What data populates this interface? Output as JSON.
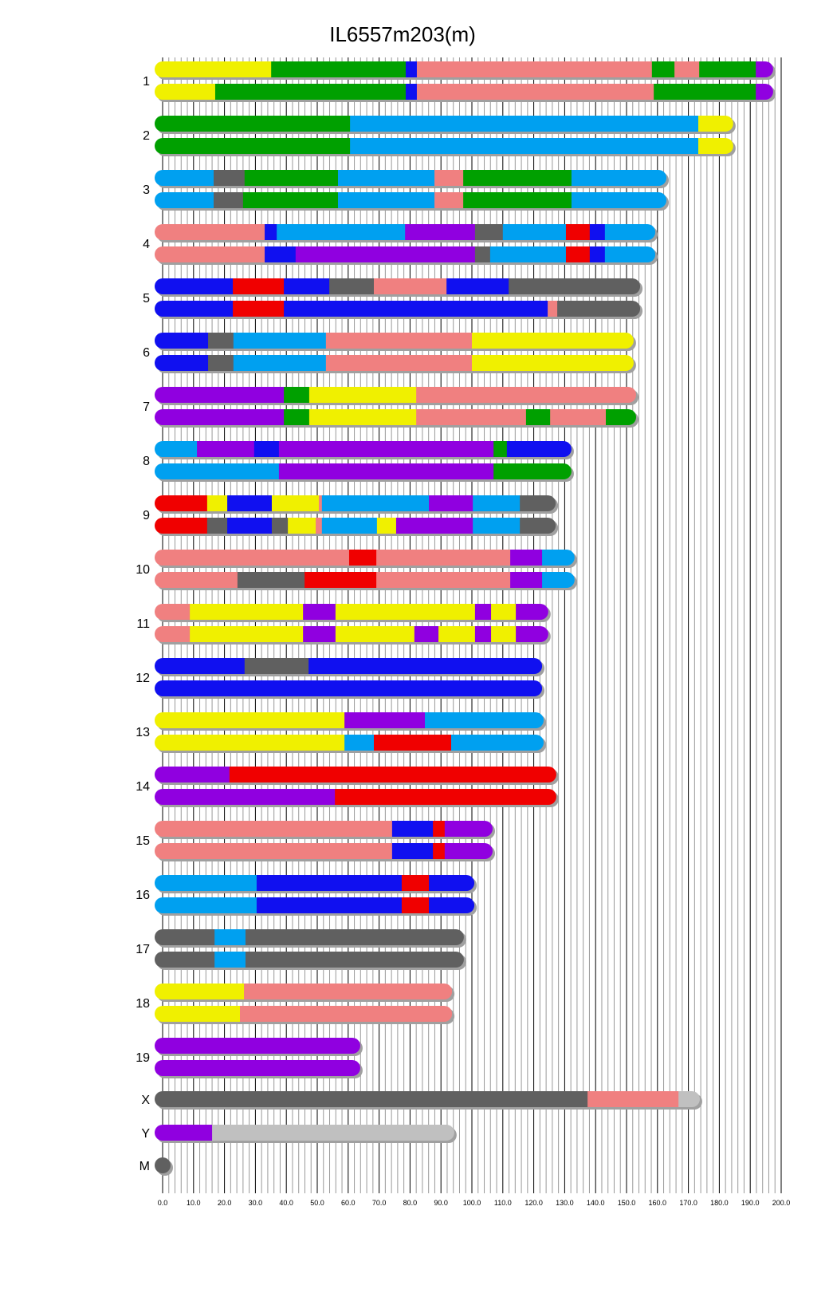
{
  "chart_data": {
    "type": "chromosome-painting",
    "title": "IL6557m203(m)",
    "xlim": [
      0,
      200
    ],
    "x_ticks": [
      "0.0",
      "10.0",
      "20.0",
      "30.0",
      "40.0",
      "50.0",
      "60.0",
      "70.0",
      "80.0",
      "90.0",
      "100.0",
      "110.0",
      "120.0",
      "130.0",
      "140.0",
      "150.0",
      "160.0",
      "170.0",
      "180.0",
      "190.0",
      "200.0"
    ],
    "grid": "major every 10, minor every 2",
    "colors": {
      "yellow": "#f0f000",
      "green": "#00a000",
      "blue": "#1010f0",
      "pink": "#f08080",
      "lightblue": "#00a0f0",
      "purple": "#9000e0",
      "gray": "#606060",
      "red": "#f00000",
      "lightgray": "#c0c0c0"
    },
    "chromosomes": [
      {
        "label": "1",
        "bars": [
          [
            [
              35.1,
              "yellow"
            ],
            [
              78.6,
              "green"
            ],
            [
              82.2,
              "blue"
            ],
            [
              158.2,
              "pink"
            ],
            [
              165.5,
              "green"
            ],
            [
              173.5,
              "pink"
            ],
            [
              191.8,
              "green"
            ],
            [
              197.4,
              "purple"
            ]
          ],
          [
            [
              17,
              "yellow"
            ],
            [
              78.6,
              "green"
            ],
            [
              82.2,
              "blue"
            ],
            [
              158.8,
              "pink"
            ],
            [
              191.8,
              "green"
            ],
            [
              197.4,
              "purple"
            ]
          ]
        ]
      },
      {
        "label": "2",
        "bars": [
          [
            [
              60.6,
              "green"
            ],
            [
              173.2,
              "lightblue"
            ],
            [
              184.5,
              "yellow"
            ]
          ],
          [
            [
              60.6,
              "green"
            ],
            [
              173.2,
              "lightblue"
            ],
            [
              184.5,
              "yellow"
            ]
          ]
        ]
      },
      {
        "label": "3",
        "bars": [
          [
            [
              16.5,
              "lightblue"
            ],
            [
              26.5,
              "gray"
            ],
            [
              56.7,
              "green"
            ],
            [
              87.9,
              "lightblue"
            ],
            [
              97.2,
              "pink"
            ],
            [
              132.2,
              "green"
            ],
            [
              162.9,
              "lightblue"
            ]
          ],
          [
            [
              16.5,
              "lightblue"
            ],
            [
              26,
              "gray"
            ],
            [
              56.7,
              "green"
            ],
            [
              87.9,
              "lightblue"
            ],
            [
              97.2,
              "pink"
            ],
            [
              132.2,
              "green"
            ],
            [
              162.9,
              "lightblue"
            ]
          ]
        ]
      },
      {
        "label": "4",
        "bars": [
          [
            [
              33,
              "pink"
            ],
            [
              36.9,
              "blue"
            ],
            [
              78.4,
              "lightblue"
            ],
            [
              101,
              "purple"
            ],
            [
              110,
              "gray"
            ],
            [
              130.4,
              "lightblue"
            ],
            [
              138.1,
              "red"
            ],
            [
              143,
              "blue"
            ],
            [
              159.3,
              "lightblue"
            ]
          ],
          [
            [
              33,
              "pink"
            ],
            [
              43,
              "blue"
            ],
            [
              101,
              "purple"
            ],
            [
              105.9,
              "gray"
            ],
            [
              130.4,
              "lightblue"
            ],
            [
              138.1,
              "red"
            ],
            [
              143,
              "blue"
            ],
            [
              159.3,
              "lightblue"
            ]
          ]
        ]
      },
      {
        "label": "5",
        "bars": [
          [
            [
              22.7,
              "blue"
            ],
            [
              39.2,
              "red"
            ],
            [
              53.9,
              "blue"
            ],
            [
              68.3,
              "gray"
            ],
            [
              91.8,
              "pink"
            ],
            [
              111.9,
              "blue"
            ],
            [
              154.4,
              "gray"
            ]
          ],
          [
            [
              22.7,
              "blue"
            ],
            [
              39.2,
              "red"
            ],
            [
              124.5,
              "blue"
            ],
            [
              127.6,
              "pink"
            ],
            [
              154.4,
              "gray"
            ]
          ]
        ]
      },
      {
        "label": "6",
        "bars": [
          [
            [
              14.7,
              "blue"
            ],
            [
              22.9,
              "gray"
            ],
            [
              52.8,
              "lightblue"
            ],
            [
              100,
              "pink"
            ],
            [
              152.3,
              "yellow"
            ]
          ],
          [
            [
              14.7,
              "blue"
            ],
            [
              22.9,
              "gray"
            ],
            [
              52.8,
              "lightblue"
            ],
            [
              100,
              "pink"
            ],
            [
              152.3,
              "yellow"
            ]
          ]
        ]
      },
      {
        "label": "7",
        "bars": [
          [
            [
              39.2,
              "purple"
            ],
            [
              47.4,
              "green"
            ],
            [
              82,
              "yellow"
            ],
            [
              153.1,
              "pink"
            ]
          ],
          [
            [
              39.2,
              "purple"
            ],
            [
              47.4,
              "green"
            ],
            [
              82,
              "yellow"
            ],
            [
              117.5,
              "pink"
            ],
            [
              125.3,
              "green"
            ],
            [
              143.3,
              "pink"
            ],
            [
              153.1,
              "green"
            ]
          ]
        ]
      },
      {
        "label": "8",
        "bars": [
          [
            [
              11.1,
              "lightblue"
            ],
            [
              29.6,
              "purple"
            ],
            [
              37.6,
              "blue"
            ],
            [
              107,
              "purple"
            ],
            [
              111.3,
              "green"
            ],
            [
              132.2,
              "blue"
            ]
          ],
          [
            [
              37.6,
              "lightblue"
            ],
            [
              107,
              "purple"
            ],
            [
              132.2,
              "green"
            ]
          ]
        ]
      },
      {
        "label": "9",
        "bars": [
          [
            [
              14.4,
              "red"
            ],
            [
              20.9,
              "yellow"
            ],
            [
              35.3,
              "blue"
            ],
            [
              50.5,
              "yellow"
            ],
            [
              51.5,
              "pink"
            ],
            [
              86.1,
              "lightblue"
            ],
            [
              100.3,
              "purple"
            ],
            [
              115.5,
              "lightblue"
            ],
            [
              127.1,
              "gray"
            ]
          ],
          [
            [
              14.4,
              "red"
            ],
            [
              20.9,
              "gray"
            ],
            [
              35.3,
              "blue"
            ],
            [
              40.5,
              "gray"
            ],
            [
              49.5,
              "yellow"
            ],
            [
              51.5,
              "pink"
            ],
            [
              69.3,
              "lightblue"
            ],
            [
              75.5,
              "yellow"
            ],
            [
              100.3,
              "purple"
            ],
            [
              115.5,
              "lightblue"
            ],
            [
              127.1,
              "gray"
            ]
          ]
        ]
      },
      {
        "label": "10",
        "bars": [
          [
            [
              60.3,
              "pink"
            ],
            [
              69.1,
              "red"
            ],
            [
              112.4,
              "pink"
            ],
            [
              122.7,
              "purple"
            ],
            [
              133.2,
              "lightblue"
            ]
          ],
          [
            [
              24.2,
              "pink"
            ],
            [
              45.9,
              "gray"
            ],
            [
              69.1,
              "red"
            ],
            [
              112.4,
              "pink"
            ],
            [
              122.7,
              "purple"
            ],
            [
              133.2,
              "lightblue"
            ]
          ]
        ]
      },
      {
        "label": "11",
        "bars": [
          [
            [
              8.8,
              "pink"
            ],
            [
              45.4,
              "yellow"
            ],
            [
              55.9,
              "purple"
            ],
            [
              101,
              "yellow"
            ],
            [
              106.2,
              "purple"
            ],
            [
              114.2,
              "yellow"
            ],
            [
              124.7,
              "purple"
            ]
          ],
          [
            [
              8.8,
              "pink"
            ],
            [
              45.4,
              "yellow"
            ],
            [
              55.9,
              "purple"
            ],
            [
              81.4,
              "yellow"
            ],
            [
              89.2,
              "purple"
            ],
            [
              101,
              "yellow"
            ],
            [
              106.2,
              "purple"
            ],
            [
              114.2,
              "yellow"
            ],
            [
              124.7,
              "purple"
            ]
          ]
        ]
      },
      {
        "label": "12",
        "bars": [
          [
            [
              26.5,
              "blue"
            ],
            [
              47.2,
              "gray"
            ],
            [
              122.7,
              "blue"
            ]
          ],
          [
            [
              122.7,
              "blue"
            ]
          ]
        ]
      },
      {
        "label": "13",
        "bars": [
          [
            [
              58.8,
              "yellow"
            ],
            [
              84.8,
              "purple"
            ],
            [
              123.2,
              "lightblue"
            ]
          ],
          [
            [
              58.8,
              "yellow"
            ],
            [
              68.3,
              "lightblue"
            ],
            [
              93.3,
              "red"
            ],
            [
              123.2,
              "lightblue"
            ]
          ]
        ]
      },
      {
        "label": "14",
        "bars": [
          [
            [
              21.6,
              "purple"
            ],
            [
              127.3,
              "red"
            ]
          ],
          [
            [
              55.7,
              "purple"
            ],
            [
              127.3,
              "red"
            ]
          ]
        ]
      },
      {
        "label": "15",
        "bars": [
          [
            [
              74.2,
              "pink"
            ],
            [
              87.4,
              "blue"
            ],
            [
              91.2,
              "red"
            ],
            [
              106.7,
              "purple"
            ]
          ],
          [
            [
              74.2,
              "pink"
            ],
            [
              87.4,
              "blue"
            ],
            [
              91.2,
              "red"
            ],
            [
              106.7,
              "purple"
            ]
          ]
        ]
      },
      {
        "label": "16",
        "bars": [
          [
            [
              30.4,
              "lightblue"
            ],
            [
              77.3,
              "blue"
            ],
            [
              86.1,
              "red"
            ],
            [
              100.8,
              "blue"
            ]
          ],
          [
            [
              30.4,
              "lightblue"
            ],
            [
              77.3,
              "blue"
            ],
            [
              86.1,
              "red"
            ],
            [
              100.8,
              "blue"
            ]
          ]
        ]
      },
      {
        "label": "17",
        "bars": [
          [
            [
              16.8,
              "gray"
            ],
            [
              26.8,
              "lightblue"
            ],
            [
              97.4,
              "gray"
            ]
          ],
          [
            [
              16.8,
              "gray"
            ],
            [
              26.8,
              "lightblue"
            ],
            [
              97.4,
              "gray"
            ]
          ]
        ]
      },
      {
        "label": "18",
        "bars": [
          [
            [
              26.3,
              "yellow"
            ],
            [
              93.6,
              "pink"
            ]
          ],
          [
            [
              25,
              "yellow"
            ],
            [
              93.6,
              "pink"
            ]
          ]
        ]
      },
      {
        "label": "19",
        "bars": [
          [
            [
              63.9,
              "purple"
            ]
          ],
          [
            [
              63.9,
              "purple"
            ]
          ]
        ]
      },
      {
        "label": "X",
        "bars": [
          [
            [
              137.4,
              "gray"
            ],
            [
              166.8,
              "pink"
            ],
            [
              173.7,
              "lightgray"
            ]
          ]
        ]
      },
      {
        "label": "Y",
        "bars": [
          [
            [
              16,
              "purple"
            ],
            [
              94.3,
              "lightgray"
            ]
          ]
        ]
      },
      {
        "label": "M",
        "bars": [
          [
            [
              1,
              "gray"
            ]
          ]
        ]
      }
    ]
  }
}
